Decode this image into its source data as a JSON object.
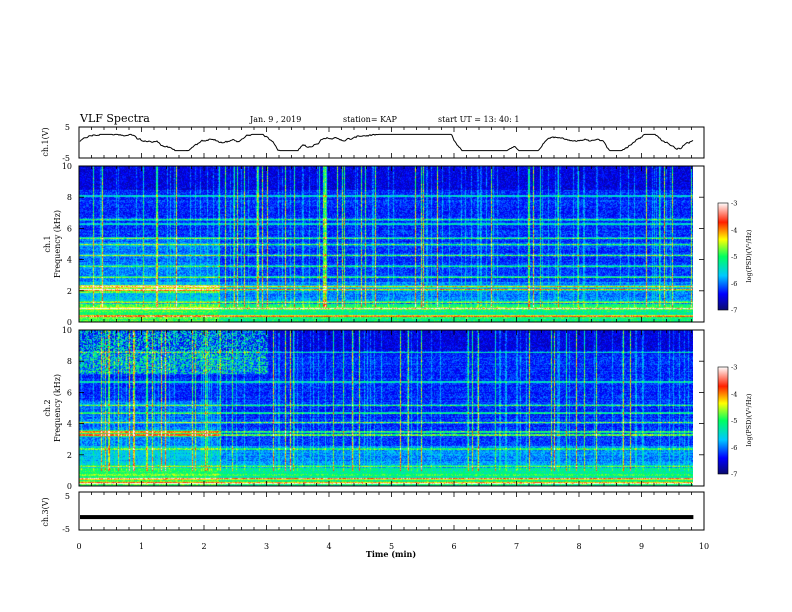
{
  "header": {
    "title": "VLF Spectra",
    "date": "Jan. 9  , 2019",
    "station": "station= KAP",
    "start": "start  UT =   13: 40: 1"
  },
  "chart_data": [
    {
      "type": "line",
      "name": "ch1-waveform",
      "ylabel": "ch.1(V)",
      "ylim": [
        -5,
        5
      ],
      "yticks": [
        "5",
        "-5"
      ],
      "xlim": [
        0,
        10
      ],
      "x_end": 9.83,
      "amplitude_approx": 1.3
    },
    {
      "type": "heatmap",
      "name": "ch1-spectrogram",
      "ylabel_lines": [
        "ch.1",
        "Frequency  (kHz)"
      ],
      "ylim": [
        0,
        10
      ],
      "yticks": [
        "0",
        "2",
        "4",
        "6",
        "8",
        "10"
      ],
      "xlim": [
        0,
        10
      ],
      "x_end": 9.83,
      "colorbar": {
        "label": "log(PSD)(V²/Hz)",
        "range": [
          -7,
          -3
        ],
        "ticks": [
          "-3",
          "-4",
          "-5",
          "-6",
          "-7"
        ]
      }
    },
    {
      "type": "heatmap",
      "name": "ch2-spectrogram",
      "ylabel_lines": [
        "ch.2",
        "Frequency  (kHz)"
      ],
      "ylim": [
        0,
        10
      ],
      "yticks": [
        "0",
        "2",
        "4",
        "6",
        "8",
        "10"
      ],
      "xlim": [
        0,
        10
      ],
      "x_end": 9.83,
      "colorbar": {
        "label": "log(PSD)(V²/Hz)",
        "range": [
          -7,
          -3
        ],
        "ticks": [
          "-3",
          "-4",
          "-5",
          "-6",
          "-7"
        ]
      }
    },
    {
      "type": "line",
      "name": "ch3-waveform",
      "ylabel": "ch.3(V)",
      "ylim": [
        -5,
        5
      ],
      "yticks": [
        "5",
        "-5"
      ],
      "xlim": [
        0,
        10
      ],
      "x_end": 9.83,
      "constant_value": -1.6
    }
  ],
  "xaxis": {
    "label": "Time  (min)",
    "ticks": [
      "0",
      "1",
      "2",
      "3",
      "4",
      "5",
      "6",
      "7",
      "8",
      "9",
      "10"
    ]
  }
}
